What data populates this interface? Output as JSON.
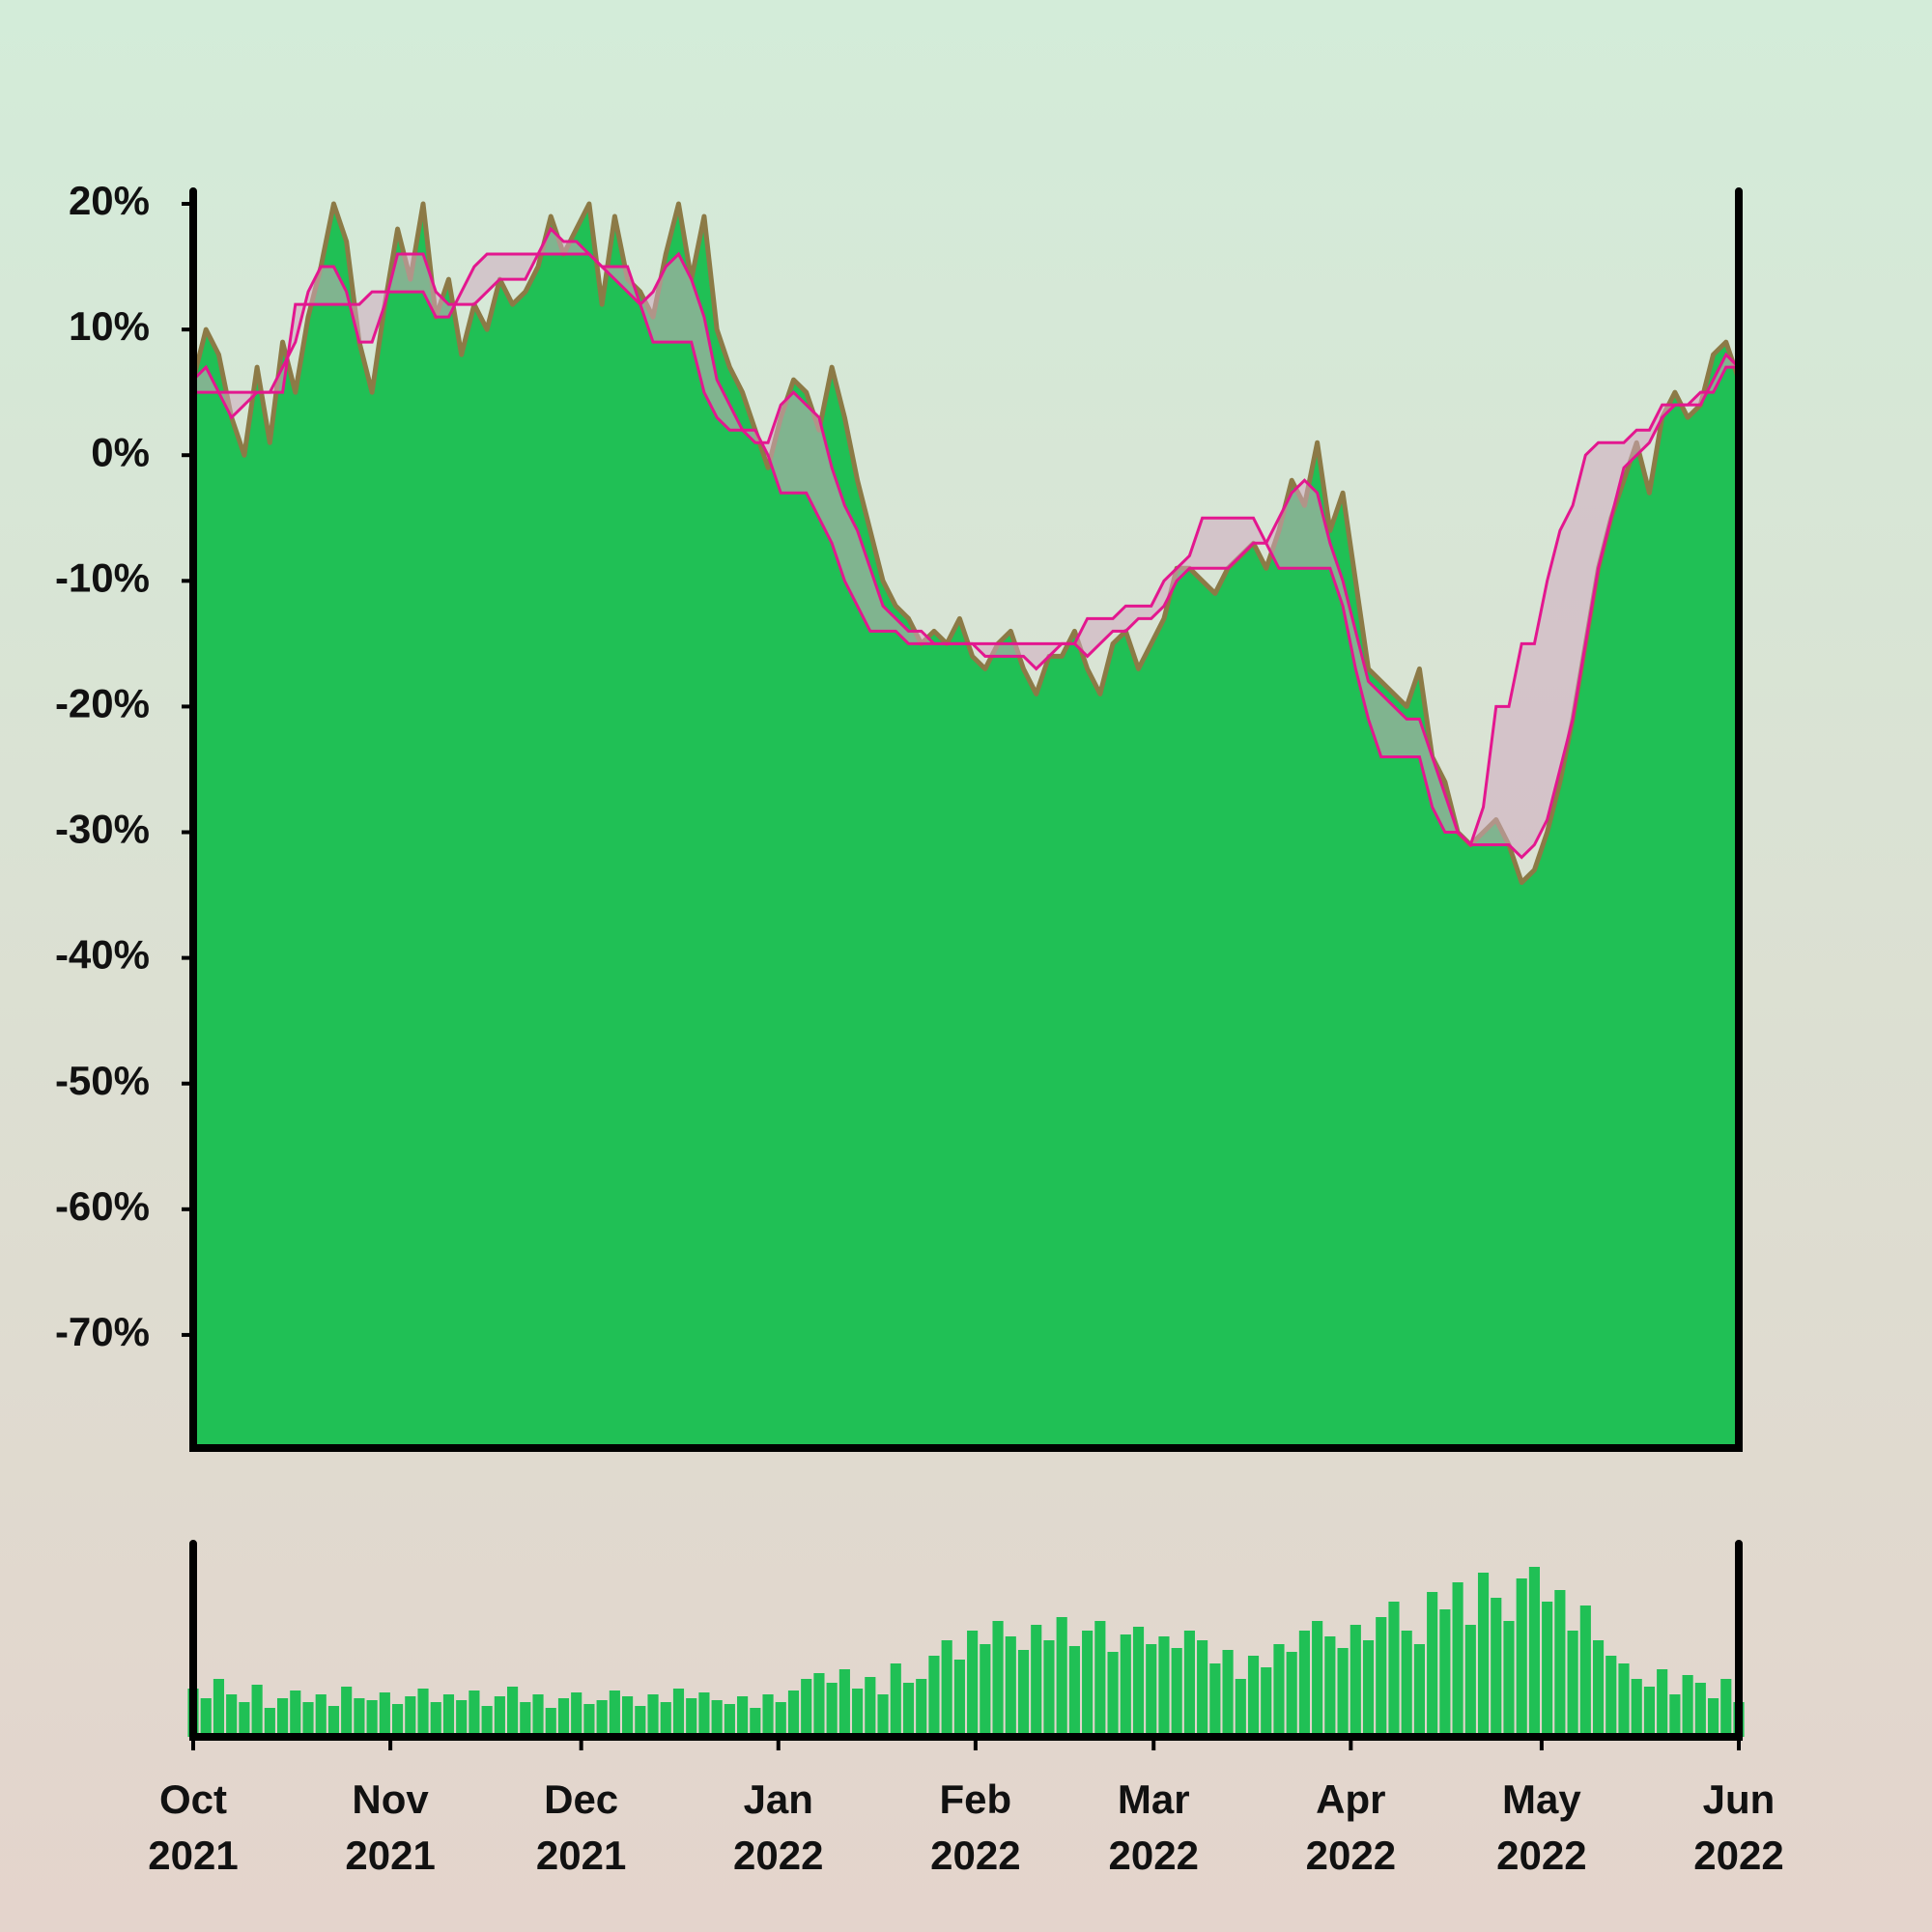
{
  "chart_data": [
    {
      "type": "area",
      "xlim": [
        "2021-10",
        "2022-06"
      ],
      "ylim": [
        -79,
        21
      ],
      "yticks": [
        {
          "value": 20,
          "label": "20%"
        },
        {
          "value": 10,
          "label": "10%"
        },
        {
          "value": 0,
          "label": "0%"
        },
        {
          "value": -10,
          "label": "-10%"
        },
        {
          "value": -20,
          "label": "-20%"
        },
        {
          "value": -30,
          "label": "-30%"
        },
        {
          "value": -40,
          "label": "-40%"
        },
        {
          "value": -50,
          "label": "-50%"
        },
        {
          "value": -60,
          "label": "-60%"
        },
        {
          "value": -70,
          "label": "-70%"
        }
      ],
      "band_fill": "#cfa9c0",
      "series": [
        {
          "color": "#20c055",
          "line_color": "#8c7a46",
          "values": [
            6,
            10,
            8,
            3,
            0,
            7,
            1,
            9,
            5,
            11,
            15,
            20,
            17,
            9,
            5,
            12,
            18,
            14,
            20,
            11,
            14,
            8,
            12,
            10,
            14,
            12,
            13,
            15,
            19,
            16,
            18,
            20,
            12,
            19,
            14,
            13,
            11,
            16,
            20,
            14,
            19,
            10,
            7,
            5,
            2,
            -1,
            3,
            6,
            5,
            2,
            7,
            3,
            -2,
            -6,
            -10,
            -12,
            -13,
            -15,
            -14,
            -15,
            -13,
            -16,
            -17,
            -15,
            -14,
            -17,
            -19,
            -16,
            -16,
            -14,
            -17,
            -19,
            -15,
            -14,
            -17,
            -15,
            -13,
            -9,
            -9,
            -10,
            -11,
            -9,
            -8,
            -7,
            -9,
            -6,
            -2,
            -4,
            1,
            -6,
            -3,
            -10,
            -17,
            -18,
            -19,
            -20,
            -17,
            -24,
            -26,
            -30,
            -31,
            -30,
            -29,
            -31,
            -34,
            -33,
            -30,
            -26,
            -21,
            -15,
            -9,
            -5,
            -2,
            1,
            -3,
            3,
            5,
            3,
            4,
            8,
            9,
            6
          ]
        },
        {
          "color": "#e3178f",
          "values": [
            6,
            7,
            5,
            3,
            4,
            5,
            5,
            7,
            9,
            13,
            15,
            15,
            13,
            9,
            9,
            12,
            16,
            16,
            16,
            13,
            12,
            12,
            12,
            13,
            14,
            14,
            14,
            16,
            18,
            17,
            17,
            16,
            15,
            14,
            13,
            12,
            13,
            15,
            16,
            14,
            11,
            6,
            4,
            2,
            1,
            1,
            4,
            5,
            4,
            3,
            -1,
            -4,
            -6,
            -9,
            -12,
            -13,
            -14,
            -14,
            -15,
            -15,
            -15,
            -15,
            -16,
            -16,
            -16,
            -16,
            -17,
            -16,
            -15,
            -15,
            -16,
            -15,
            -14,
            -14,
            -13,
            -13,
            -12,
            -10,
            -9,
            -9,
            -9,
            -9,
            -8,
            -7,
            -7,
            -5,
            -3,
            -2,
            -3,
            -7,
            -10,
            -14,
            -18,
            -19,
            -20,
            -21,
            -21,
            -24,
            -27,
            -30,
            -31,
            -31,
            -31,
            -31,
            -32,
            -31,
            -29,
            -25,
            -21,
            -15,
            -9,
            -5,
            -1,
            0,
            1,
            3,
            4,
            4,
            4,
            6,
            8,
            7
          ]
        },
        {
          "color": "#e3178f",
          "values": [
            5,
            5,
            5,
            5,
            5,
            5,
            5,
            5,
            12,
            12,
            12,
            12,
            12,
            12,
            13,
            13,
            13,
            13,
            13,
            11,
            11,
            13,
            15,
            16,
            16,
            16,
            16,
            16,
            16,
            16,
            16,
            16,
            15,
            15,
            15,
            12,
            9,
            9,
            9,
            9,
            5,
            3,
            2,
            2,
            2,
            0,
            -3,
            -3,
            -3,
            -5,
            -7,
            -10,
            -12,
            -14,
            -14,
            -14,
            -15,
            -15,
            -15,
            -15,
            -15,
            -15,
            -15,
            -15,
            -15,
            -15,
            -15,
            -15,
            -15,
            -15,
            -13,
            -13,
            -13,
            -12,
            -12,
            -12,
            -10,
            -9,
            -8,
            -5,
            -5,
            -5,
            -5,
            -5,
            -7,
            -9,
            -9,
            -9,
            -9,
            -9,
            -12,
            -17,
            -21,
            -24,
            -24,
            -24,
            -24,
            -28,
            -30,
            -30,
            -31,
            -28,
            -20,
            -20,
            -15,
            -15,
            -10,
            -6,
            -4,
            0,
            1,
            1,
            1,
            2,
            2,
            4,
            4,
            4,
            5,
            5,
            7,
            7
          ]
        }
      ]
    },
    {
      "type": "bar",
      "color": "#20c055",
      "xlim": [
        "2021-10",
        "2022-06"
      ],
      "ylim": [
        0,
        100
      ],
      "xticks": [
        {
          "value": "2021-10",
          "label": [
            "Oct",
            "2021"
          ]
        },
        {
          "value": "2021-11",
          "label": [
            "Nov",
            "2021"
          ]
        },
        {
          "value": "2021-12",
          "label": [
            "Dec",
            "2021"
          ]
        },
        {
          "value": "2022-01",
          "label": [
            "Jan",
            "2022"
          ]
        },
        {
          "value": "2022-02",
          "label": [
            "Feb",
            "2022"
          ]
        },
        {
          "value": "2022-03",
          "label": [
            "Mar",
            "2022"
          ]
        },
        {
          "value": "2022-04",
          "label": [
            "Apr",
            "2022"
          ]
        },
        {
          "value": "2022-05",
          "label": [
            "May",
            "2022"
          ]
        },
        {
          "value": "2022-06",
          "label": [
            "Jun",
            "2022"
          ]
        }
      ],
      "values": [
        25,
        20,
        30,
        22,
        18,
        27,
        15,
        20,
        24,
        18,
        22,
        16,
        26,
        20,
        19,
        23,
        17,
        21,
        25,
        18,
        22,
        19,
        24,
        16,
        21,
        26,
        18,
        22,
        15,
        20,
        23,
        17,
        19,
        24,
        21,
        16,
        22,
        18,
        25,
        20,
        23,
        19,
        17,
        21,
        15,
        22,
        18,
        24,
        30,
        33,
        28,
        35,
        25,
        31,
        22,
        38,
        28,
        30,
        42,
        50,
        40,
        55,
        48,
        60,
        52,
        45,
        58,
        50,
        62,
        47,
        55,
        60,
        44,
        53,
        57,
        48,
        52,
        46,
        55,
        50,
        38,
        45,
        30,
        42,
        36,
        48,
        44,
        55,
        60,
        52,
        46,
        58,
        50,
        62,
        70,
        55,
        48,
        75,
        66,
        80,
        58,
        85,
        72,
        60,
        82,
        88,
        70,
        76,
        55,
        68,
        50,
        42,
        38,
        30,
        26,
        35,
        22,
        32,
        28,
        20,
        30,
        18
      ]
    }
  ]
}
